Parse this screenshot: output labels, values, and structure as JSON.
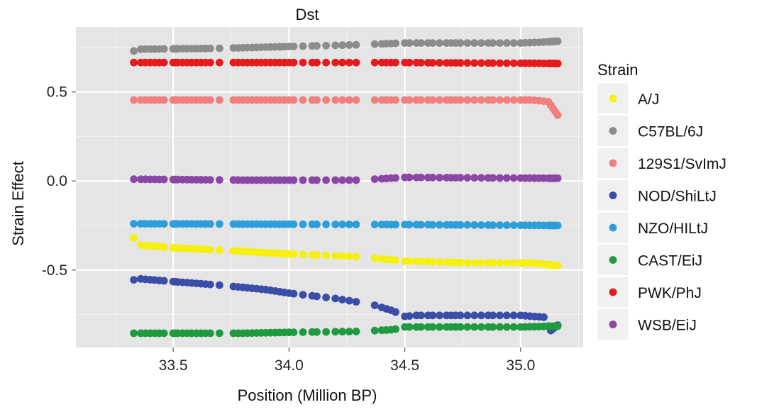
{
  "chart_data": {
    "type": "scatter",
    "title": "Dst",
    "xlabel": "Position (Million BP)",
    "ylabel": "Strain Effect",
    "xlim": [
      33.08,
      35.27
    ],
    "ylim": [
      -0.935,
      0.865
    ],
    "x_ticks": [
      33.5,
      34.0,
      34.5,
      35.0
    ],
    "x_tick_labels": [
      "33.5",
      "34.0",
      "34.5",
      "35.0"
    ],
    "y_ticks": [
      0.5,
      0.0,
      -0.5
    ],
    "y_tick_labels": [
      "0.5",
      "0.0",
      "-0.5"
    ],
    "grid": true,
    "legend": {
      "title": "Strain",
      "placement": "right"
    },
    "series": [
      {
        "name": "A/J",
        "color": "#f5f00f",
        "profile": [
          [
            33.33,
            -0.32
          ],
          [
            33.36,
            -0.36
          ],
          [
            33.5,
            -0.375
          ],
          [
            33.8,
            -0.395
          ],
          [
            34.0,
            -0.41
          ],
          [
            34.3,
            -0.425
          ],
          [
            34.5,
            -0.45
          ],
          [
            34.8,
            -0.46
          ],
          [
            35.05,
            -0.46
          ],
          [
            35.16,
            -0.475
          ]
        ]
      },
      {
        "name": "C57BL/6J",
        "color": "#8c8c8c",
        "profile": [
          [
            33.33,
            0.73
          ],
          [
            33.36,
            0.74
          ],
          [
            33.7,
            0.745
          ],
          [
            34.0,
            0.755
          ],
          [
            34.3,
            0.765
          ],
          [
            34.5,
            0.775
          ],
          [
            35.0,
            0.775
          ],
          [
            35.1,
            0.78
          ],
          [
            35.16,
            0.785
          ]
        ]
      },
      {
        "name": "129S1/SvImJ",
        "color": "#f08080",
        "profile": [
          [
            33.33,
            0.455
          ],
          [
            35.05,
            0.455
          ],
          [
            35.12,
            0.445
          ],
          [
            35.16,
            0.37
          ]
        ]
      },
      {
        "name": "NOD/ShiLtJ",
        "color": "#3a4ea8",
        "profile": [
          [
            33.33,
            -0.555
          ],
          [
            33.36,
            -0.55
          ],
          [
            33.5,
            -0.565
          ],
          [
            33.7,
            -0.585
          ],
          [
            33.9,
            -0.61
          ],
          [
            34.0,
            -0.63
          ],
          [
            34.2,
            -0.66
          ],
          [
            34.35,
            -0.69
          ],
          [
            34.45,
            -0.73
          ],
          [
            34.5,
            -0.76
          ],
          [
            34.55,
            -0.755
          ],
          [
            35.0,
            -0.755
          ],
          [
            35.1,
            -0.765
          ],
          [
            35.13,
            -0.84
          ],
          [
            35.16,
            -0.81
          ]
        ]
      },
      {
        "name": "NZO/HILtJ",
        "color": "#2c9fdb",
        "profile": [
          [
            33.33,
            -0.24
          ],
          [
            34.5,
            -0.245
          ],
          [
            35.16,
            -0.25
          ]
        ]
      },
      {
        "name": "CAST/EiJ",
        "color": "#1f9a40",
        "profile": [
          [
            33.33,
            -0.855
          ],
          [
            33.8,
            -0.855
          ],
          [
            34.0,
            -0.85
          ],
          [
            34.3,
            -0.845
          ],
          [
            34.45,
            -0.835
          ],
          [
            34.5,
            -0.82
          ],
          [
            35.0,
            -0.82
          ],
          [
            35.16,
            -0.815
          ]
        ]
      },
      {
        "name": "PWK/PhJ",
        "color": "#e41a1c",
        "profile": [
          [
            33.33,
            0.665
          ],
          [
            34.5,
            0.665
          ],
          [
            35.16,
            0.66
          ]
        ]
      },
      {
        "name": "WSB/EiJ",
        "color": "#8b46a6",
        "profile": [
          [
            33.33,
            0.01
          ],
          [
            33.8,
            0.005
          ],
          [
            34.3,
            0.005
          ],
          [
            34.5,
            0.02
          ],
          [
            35.16,
            0.015
          ]
        ]
      }
    ]
  }
}
